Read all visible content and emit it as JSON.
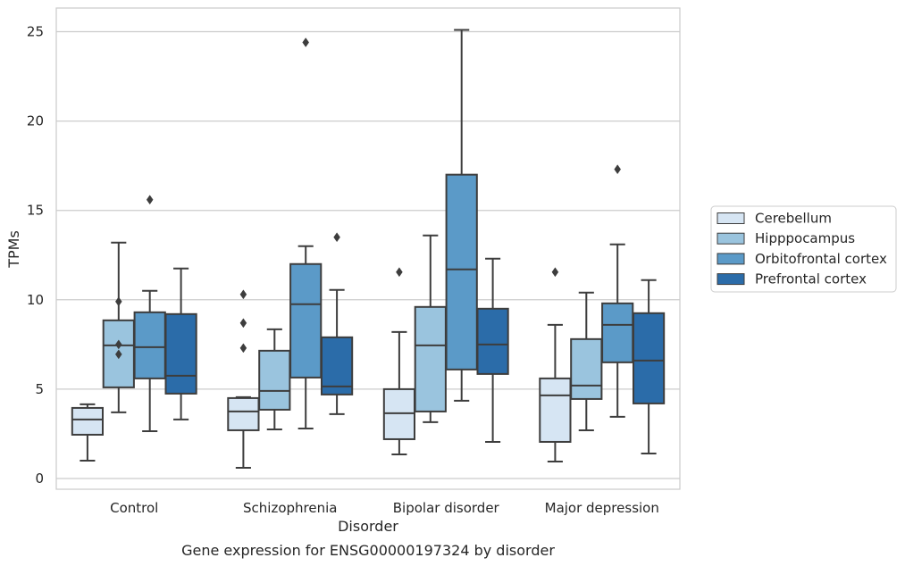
{
  "chart_data": {
    "type": "box",
    "title": "",
    "caption": "Gene expression for ENSG00000197324 by disorder",
    "xlabel": "Disorder",
    "ylabel": "TPMs",
    "ylim": [
      -0.6,
      26.3
    ],
    "yticks": [
      0,
      5,
      10,
      15,
      20,
      25
    ],
    "grid": "horizontal",
    "legend_position": "right",
    "categories": [
      "Control",
      "Schizophrenia",
      "Bipolar disorder",
      "Major depression"
    ],
    "series": [
      {
        "name": "Cerebellum",
        "color": "#d6e5f3",
        "boxes": [
          {
            "whislo": 1.0,
            "q1": 2.45,
            "med": 3.3,
            "q3": 3.95,
            "whishi": 4.15,
            "fliers": []
          },
          {
            "whislo": 0.6,
            "q1": 2.7,
            "med": 3.75,
            "q3": 4.5,
            "whishi": 4.55,
            "fliers": [
              10.3,
              8.7,
              7.3
            ]
          },
          {
            "whislo": 1.35,
            "q1": 2.2,
            "med": 3.65,
            "q3": 5.0,
            "whishi": 8.2,
            "fliers": [
              11.55
            ]
          },
          {
            "whislo": 0.95,
            "q1": 2.05,
            "med": 4.65,
            "q3": 5.6,
            "whishi": 8.6,
            "fliers": [
              11.55
            ]
          }
        ]
      },
      {
        "name": "Hipppocampus",
        "color": "#9ac4de",
        "boxes": [
          {
            "whislo": 3.7,
            "q1": 5.1,
            "med": 7.45,
            "q3": 8.85,
            "whishi": 13.2,
            "fliers": [
              9.9,
              7.5,
              6.95
            ]
          },
          {
            "whislo": 2.75,
            "q1": 3.85,
            "med": 4.9,
            "q3": 7.15,
            "whishi": 8.35,
            "fliers": []
          },
          {
            "whislo": 3.15,
            "q1": 3.75,
            "med": 7.45,
            "q3": 9.6,
            "whishi": 13.6,
            "fliers": []
          },
          {
            "whislo": 2.7,
            "q1": 4.45,
            "med": 5.2,
            "q3": 7.8,
            "whishi": 10.4,
            "fliers": []
          }
        ]
      },
      {
        "name": "Orbitofrontal cortex",
        "color": "#5b9ac8",
        "boxes": [
          {
            "whislo": 2.65,
            "q1": 5.6,
            "med": 7.35,
            "q3": 9.3,
            "whishi": 10.5,
            "fliers": [
              15.6
            ]
          },
          {
            "whislo": 2.8,
            "q1": 5.65,
            "med": 9.75,
            "q3": 12.0,
            "whishi": 13.0,
            "fliers": [
              24.4
            ]
          },
          {
            "whislo": 4.35,
            "q1": 6.1,
            "med": 11.7,
            "q3": 17.0,
            "whishi": 25.1,
            "fliers": []
          },
          {
            "whislo": 3.45,
            "q1": 6.5,
            "med": 8.6,
            "q3": 9.8,
            "whishi": 13.1,
            "fliers": [
              17.3
            ]
          }
        ]
      },
      {
        "name": "Prefrontal cortex",
        "color": "#2b6ca9",
        "boxes": [
          {
            "whislo": 3.3,
            "q1": 4.75,
            "med": 5.75,
            "q3": 9.2,
            "whishi": 11.75,
            "fliers": []
          },
          {
            "whislo": 3.6,
            "q1": 4.7,
            "med": 5.15,
            "q3": 7.9,
            "whishi": 10.55,
            "fliers": [
              13.5
            ]
          },
          {
            "whislo": 2.05,
            "q1": 5.85,
            "med": 7.5,
            "q3": 9.5,
            "whishi": 12.3,
            "fliers": []
          },
          {
            "whislo": 1.4,
            "q1": 4.2,
            "med": 6.6,
            "q3": 9.25,
            "whishi": 11.1,
            "fliers": []
          }
        ]
      }
    ]
  }
}
